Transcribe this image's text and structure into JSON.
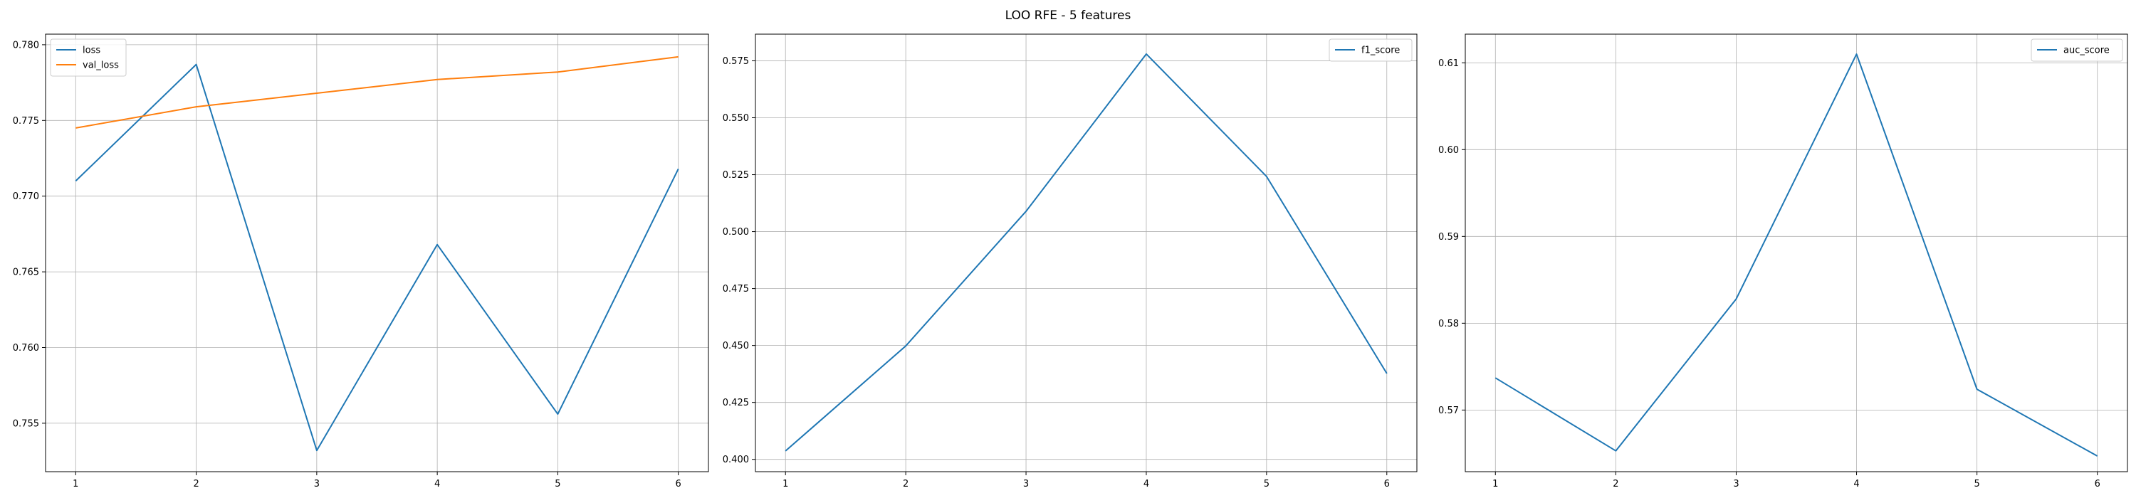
{
  "figure": {
    "title": "LOO RFE - 5 features"
  },
  "chart_data": [
    {
      "type": "line",
      "title": "",
      "xlabel": "",
      "ylabel": "",
      "x": [
        1,
        2,
        3,
        4,
        5,
        6
      ],
      "xticks": [
        1,
        2,
        3,
        4,
        5,
        6
      ],
      "xlim": [
        0.75,
        6.25
      ],
      "yticks": [
        0.755,
        0.76,
        0.765,
        0.77,
        0.775,
        0.78
      ],
      "ytick_labels": [
        "0.755",
        "0.760",
        "0.765",
        "0.770",
        "0.775",
        "0.780"
      ],
      "ylim": [
        0.7518,
        0.7807
      ],
      "grid": true,
      "legend_position": "top-left",
      "series": [
        {
          "name": "loss",
          "color": "#1f77b4",
          "values": [
            0.771,
            0.7787,
            0.7532,
            0.7668,
            0.7556,
            0.7718
          ]
        },
        {
          "name": "val_loss",
          "color": "#ff7f0e",
          "values": [
            0.7745,
            0.7759,
            0.7768,
            0.7777,
            0.7782,
            0.7792
          ]
        }
      ]
    },
    {
      "type": "line",
      "title": "",
      "xlabel": "",
      "ylabel": "",
      "x": [
        1,
        2,
        3,
        4,
        5,
        6
      ],
      "xticks": [
        1,
        2,
        3,
        4,
        5,
        6
      ],
      "xlim": [
        0.75,
        6.25
      ],
      "yticks": [
        0.4,
        0.425,
        0.45,
        0.475,
        0.5,
        0.525,
        0.55,
        0.575
      ],
      "ytick_labels": [
        "0.400",
        "0.425",
        "0.450",
        "0.475",
        "0.500",
        "0.525",
        "0.550",
        "0.575"
      ],
      "ylim": [
        0.3946,
        0.5867
      ],
      "grid": true,
      "legend_position": "top-right",
      "series": [
        {
          "name": "f1_score",
          "color": "#1f77b4",
          "values": [
            0.4037,
            0.4498,
            0.5089,
            0.578,
            0.5242,
            0.4377
          ]
        }
      ]
    },
    {
      "type": "line",
      "title": "",
      "xlabel": "",
      "ylabel": "",
      "x": [
        1,
        2,
        3,
        4,
        5,
        6
      ],
      "xticks": [
        1,
        2,
        3,
        4,
        5,
        6
      ],
      "xlim": [
        0.75,
        6.25
      ],
      "yticks": [
        0.57,
        0.58,
        0.59,
        0.6,
        0.61
      ],
      "ytick_labels": [
        "0.57",
        "0.58",
        "0.59",
        "0.60",
        "0.61"
      ],
      "ylim": [
        0.5629,
        0.6133
      ],
      "grid": true,
      "legend_position": "top-right",
      "series": [
        {
          "name": "auc_score",
          "color": "#1f77b4",
          "values": [
            0.5737,
            0.5653,
            0.5828,
            0.611,
            0.5724,
            0.5647
          ]
        }
      ]
    }
  ]
}
